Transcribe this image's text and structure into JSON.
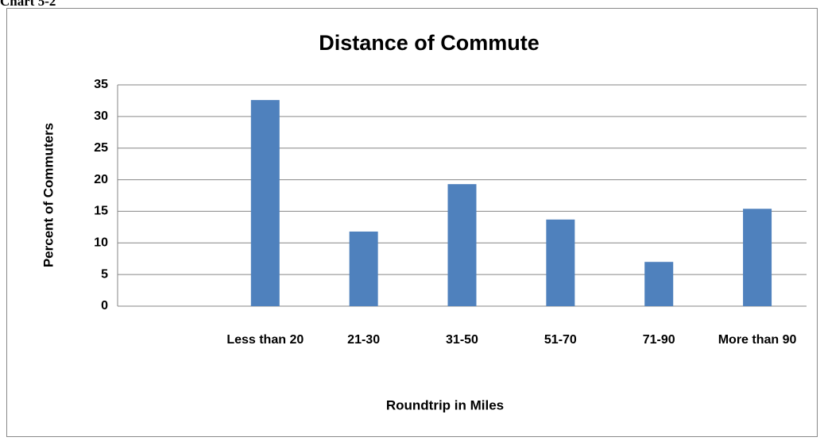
{
  "caption": "Chart 5-2",
  "chart_data": {
    "type": "bar",
    "title": "Distance of Commute",
    "x_label": "Roundtrip in Miles",
    "y_label": "Percent of Commuters",
    "categories": [
      null,
      "Less than 20",
      "21-30",
      "31-50",
      "51-70",
      "71-90",
      "More than 90"
    ],
    "values": [
      null,
      32.6,
      11.8,
      19.3,
      13.7,
      7.0,
      15.4
    ],
    "color": "#4f81bd",
    "ylim": [
      0,
      35
    ],
    "yticks": [
      0,
      5,
      10,
      15,
      20,
      25,
      30,
      35
    ],
    "grid": true
  }
}
